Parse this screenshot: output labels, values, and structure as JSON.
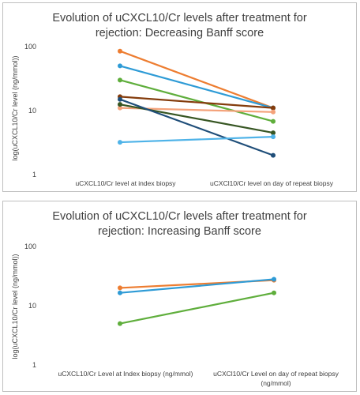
{
  "chart_data": [
    {
      "type": "line",
      "title": "Evolution of uCXCL10/Cr levels after treatment for rejection: Decreasing Banff score",
      "xlabel": "",
      "ylabel": "log(uCXCL10/Cr level (ng/mmol))",
      "categories": [
        "uCXCL10/Cr level at index biopsy",
        "uCXCl10/Cr level on day of repeat biopsy"
      ],
      "yscale": "log",
      "ylim": [
        1,
        100
      ],
      "yticks": [
        "1",
        "10",
        "100"
      ],
      "grid": false,
      "series": [
        {
          "color": "#ED7D31",
          "values": [
            85,
            11
          ]
        },
        {
          "color": "#2E9BD6",
          "values": [
            50,
            11
          ]
        },
        {
          "color": "#5FAE3C",
          "values": [
            30,
            6.8
          ]
        },
        {
          "color": "#843C0C",
          "values": [
            16.5,
            11
          ]
        },
        {
          "color": "#F4A27A",
          "values": [
            11,
            9.5
          ]
        },
        {
          "color": "#375623",
          "values": [
            12.5,
            4.5
          ]
        },
        {
          "color": "#1F4E79",
          "values": [
            15,
            2
          ]
        },
        {
          "color": "#4FB3E8",
          "values": [
            3.2,
            3.9
          ]
        }
      ]
    },
    {
      "type": "line",
      "title": "Evolution of uCXCL10/Cr levels after treatment for rejection: Increasing Banff score",
      "xlabel": "",
      "ylabel": "log(uCXCL10/Cr level (ng/mmol))",
      "categories": [
        "uCXCL10/Cr Level at Index biopsy (ng/mmol)",
        "uCXCl10/Cr Level on day of repeat biopsy (ng/mmol)"
      ],
      "yscale": "log",
      "ylim": [
        1,
        100
      ],
      "yticks": [
        "1",
        "10",
        "100"
      ],
      "grid": false,
      "series": [
        {
          "color": "#ED7D31",
          "values": [
            20,
            27
          ]
        },
        {
          "color": "#2E9BD6",
          "values": [
            16.5,
            28
          ]
        },
        {
          "color": "#5FAE3C",
          "values": [
            5,
            16.5
          ]
        }
      ]
    }
  ]
}
